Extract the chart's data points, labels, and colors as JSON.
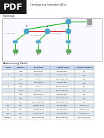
{
  "title": "Configuring Standard ACLs",
  "pdf_label": "PDF",
  "section1": "Topology",
  "section2": "Addressing Table",
  "bg_color": "#ffffff",
  "pdf_bg": "#1a1a1a",
  "pdf_text_color": "#ffffff",
  "body_text_color": "#222222",
  "table_header_bg": "#c6d9f1",
  "table_row_alt_bg": "#dce6f1",
  "table_border_color": "#aaaaaa",
  "topology_border_color": "#aaaaaa",
  "topology_bg": "#f9f9ff",
  "table_columns": [
    "Device",
    "Interface",
    "IP Address",
    "Subnet Mask",
    "Default Gateway"
  ],
  "table_rows": [
    [
      "",
      "G0/0",
      "192.168.10.1",
      "255.255.255.0",
      "N/A"
    ],
    [
      "R1",
      "G0/1",
      "192.168.20.1",
      "255.255.255.0",
      "N/A"
    ],
    [
      "",
      "S0/0/0",
      "10.1.1.1",
      "255.255.255.252",
      "N/A"
    ],
    [
      "",
      "G0/0",
      "192.168.30.1",
      "255.255.255.0",
      "N/A"
    ],
    [
      "R2",
      "G0/1",
      "10.1.1.2",
      "255.255.255.252",
      "N/A"
    ],
    [
      "",
      "S0/0/1",
      "10.2.2.2",
      "255.255.255.252",
      "N/A"
    ],
    [
      "",
      "G0/0",
      "192.168.40.1",
      "255.255.255.0",
      "N/A"
    ],
    [
      "R3",
      "G0/1",
      "10.2.2.1",
      "255.255.255.252",
      "N/A"
    ],
    [
      "",
      "Lo0",
      "209.165.200.225",
      "255.255.255.224",
      "N/A"
    ],
    [
      "PC1",
      "NIC",
      "192.168.10.10",
      "255.255.255.0",
      "192.168.10.1"
    ],
    [
      "PC2",
      "NIC",
      "192.168.20.10",
      "255.255.255.0",
      "192.168.20.1"
    ],
    [
      "PC3",
      "NIC",
      "192.168.40.10",
      "255.255.255.0",
      "192.168.40.1"
    ],
    [
      "WebServer",
      "NIC",
      "209.165.200.254",
      "255.255.255.224",
      "209.165.200.225"
    ]
  ],
  "router_color": "#4da6c8",
  "switch_color": "#4da6c8",
  "pc_color": "#5ba85b",
  "server_color": "#a0a0a0",
  "line_green": "#00aa00",
  "line_red": "#cc0000"
}
